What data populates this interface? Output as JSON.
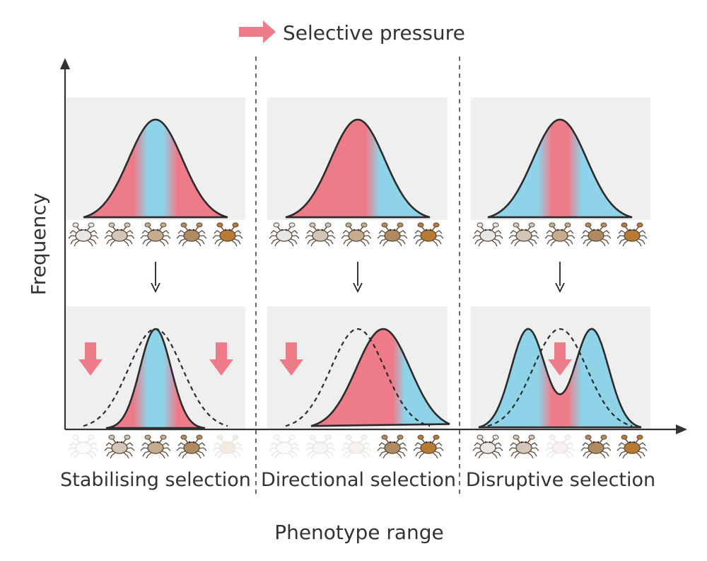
{
  "legend": {
    "label": "Selective pressure",
    "arrow_icon": "right-arrow-icon"
  },
  "axes": {
    "y_label": "Frequency",
    "x_label": "Phenotype range"
  },
  "colors": {
    "pressure": "#ee7b88",
    "survivor": "#8fd3e8",
    "curve": "#2b2b2b",
    "panel_bg": "#efefef",
    "crab_shades": [
      "#e7e7e7",
      "#d2c6b9",
      "#c6ac8e",
      "#b08b62",
      "#b97a34"
    ]
  },
  "sections": [
    {
      "label": "Stabilising selection",
      "top_gradient": [
        "pressure",
        "survivor",
        "pressure"
      ],
      "bottom_gradient": [
        "pressure",
        "survivor",
        "pressure"
      ],
      "pressure_arrows": [
        "left",
        "right"
      ],
      "bottom_crab_visibility": [
        0.15,
        1,
        1,
        1,
        0.15
      ]
    },
    {
      "label": "Directional selection",
      "top_gradient": [
        "pressure",
        "pressure",
        "survivor"
      ],
      "bottom_gradient": [
        "pressure",
        "pressure",
        "survivor"
      ],
      "pressure_arrows": [
        "left"
      ],
      "bottom_crab_visibility": [
        0.15,
        0.15,
        0.15,
        1,
        1
      ]
    },
    {
      "label": "Disruptive selection",
      "top_gradient": [
        "survivor",
        "pressure",
        "survivor"
      ],
      "bottom_gradient": [
        "survivor",
        "pressure",
        "survivor"
      ],
      "pressure_arrows": [
        "center"
      ],
      "bottom_crab_visibility": [
        1,
        1,
        0.15,
        1,
        1
      ]
    }
  ]
}
